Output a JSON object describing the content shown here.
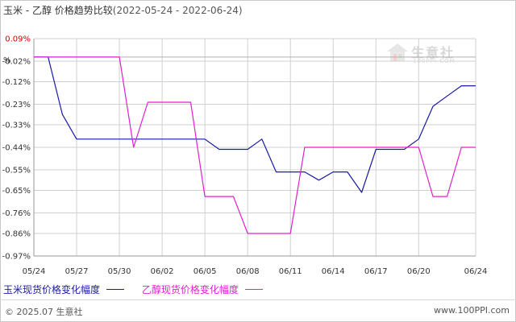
{
  "title": {
    "main": "玉米 - 乙醇 价格趋势比较",
    "range": "(2022-05-24 - 2022-06-24)"
  },
  "unit_label": "%",
  "watermark": {
    "cn": "生意社",
    "en": "100PPI.COM"
  },
  "footer": {
    "copyright": "© 2025.07 生意社",
    "site": "www.100PPI.com"
  },
  "colors": {
    "series_1": "#1a1aa6",
    "series_2": "#e020d0",
    "grid": "#d0d0d0",
    "axis": "#999999",
    "tick_text": "#333333",
    "top_tick_text": "#cc0000"
  },
  "chart_data": {
    "type": "line",
    "title": "玉米 - 乙醇 价格趋势比较",
    "xlabel": "",
    "ylabel": "%",
    "ylim": [
      -0.97,
      0.09
    ],
    "yticks": [
      0.09,
      -0.02,
      -0.12,
      -0.23,
      -0.33,
      -0.44,
      -0.55,
      -0.65,
      -0.76,
      -0.86,
      -0.97
    ],
    "ytick_labels": [
      "0.09%",
      "-0.02%",
      "-0.12%",
      "-0.23%",
      "-0.33%",
      "-0.44%",
      "-0.55%",
      "-0.65%",
      "-0.76%",
      "-0.86%",
      "-0.97%"
    ],
    "x": [
      "05/24",
      "05/25",
      "05/26",
      "05/27",
      "05/28",
      "05/29",
      "05/30",
      "05/31",
      "06/01",
      "06/02",
      "06/03",
      "06/04",
      "06/05",
      "06/06",
      "06/07",
      "06/08",
      "06/09",
      "06/10",
      "06/11",
      "06/12",
      "06/13",
      "06/14",
      "06/15",
      "06/16",
      "06/17",
      "06/18",
      "06/19",
      "06/20",
      "06/21",
      "06/22",
      "06/23",
      "06/24"
    ],
    "xtick_labels": [
      "05/24",
      "05/27",
      "05/30",
      "06/02",
      "06/05",
      "06/08",
      "06/11",
      "06/14",
      "06/17",
      "06/20",
      "06/24"
    ],
    "grid": true,
    "legend_position": "bottom-left",
    "series": [
      {
        "name": "玉米现货价格变化幅度",
        "values": [
          0,
          0,
          -0.28,
          -0.4,
          -0.4,
          -0.4,
          -0.4,
          -0.4,
          -0.4,
          -0.4,
          -0.4,
          -0.4,
          -0.4,
          -0.45,
          -0.45,
          -0.45,
          -0.4,
          -0.56,
          -0.56,
          -0.56,
          -0.6,
          -0.56,
          -0.56,
          -0.66,
          -0.45,
          -0.45,
          -0.45,
          -0.4,
          -0.24,
          -0.19,
          -0.14,
          -0.14
        ]
      },
      {
        "name": "乙醇现货价格变化幅度",
        "values": [
          0,
          0,
          0,
          0,
          0,
          0,
          0,
          -0.44,
          -0.22,
          -0.22,
          -0.22,
          -0.22,
          -0.68,
          -0.68,
          -0.68,
          -0.86,
          -0.86,
          -0.86,
          -0.86,
          -0.44,
          -0.44,
          -0.44,
          -0.44,
          -0.44,
          -0.44,
          -0.44,
          -0.44,
          -0.44,
          -0.68,
          -0.68,
          -0.44,
          -0.44
        ]
      }
    ]
  }
}
